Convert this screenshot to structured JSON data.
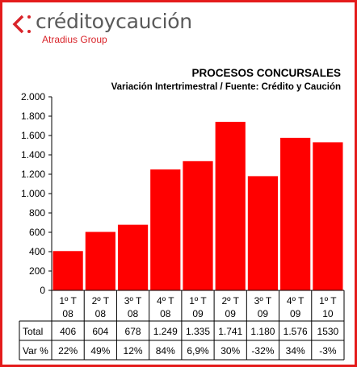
{
  "brand": {
    "name": "créditoycaución",
    "group": "Atradius Group",
    "icon": "chevron-logo-icon",
    "color": "#d9242a"
  },
  "chart_data": {
    "type": "bar",
    "title": "PROCESOS CONCURSALES",
    "subtitle": "Variación Intertrimestral / Fuente: Crédito y Caución",
    "categories": [
      [
        "1º T",
        "08"
      ],
      [
        "2º T",
        "08"
      ],
      [
        "3º T",
        "08"
      ],
      [
        "4º T",
        "08"
      ],
      [
        "1º T",
        "09"
      ],
      [
        "2º T",
        "09"
      ],
      [
        "3º T",
        "09"
      ],
      [
        "4º T",
        "09"
      ],
      [
        "1º T",
        "10"
      ]
    ],
    "values": [
      406,
      604,
      678,
      1249,
      1335,
      1741,
      1180,
      1576,
      1530
    ],
    "ylim": [
      0,
      2000
    ],
    "yticks": [
      0,
      200,
      400,
      600,
      800,
      1000,
      1200,
      1400,
      1600,
      1800,
      2000
    ],
    "ytick_labels": [
      "0",
      "200",
      "400",
      "600",
      "800",
      "1.000",
      "1.200",
      "1.400",
      "1.600",
      "1.800",
      "2.000"
    ],
    "grid": false,
    "bar_color": "#ff0000",
    "table": {
      "row_labels": [
        "Total",
        "Var %"
      ],
      "total": [
        "406",
        "604",
        "678",
        "1.249",
        "1.335",
        "1.741",
        "1.180",
        "1.576",
        "1530"
      ],
      "var": [
        "22%",
        "49%",
        "12%",
        "84%",
        "6,9%",
        "30%",
        "-32%",
        "34%",
        "-3%"
      ]
    }
  }
}
